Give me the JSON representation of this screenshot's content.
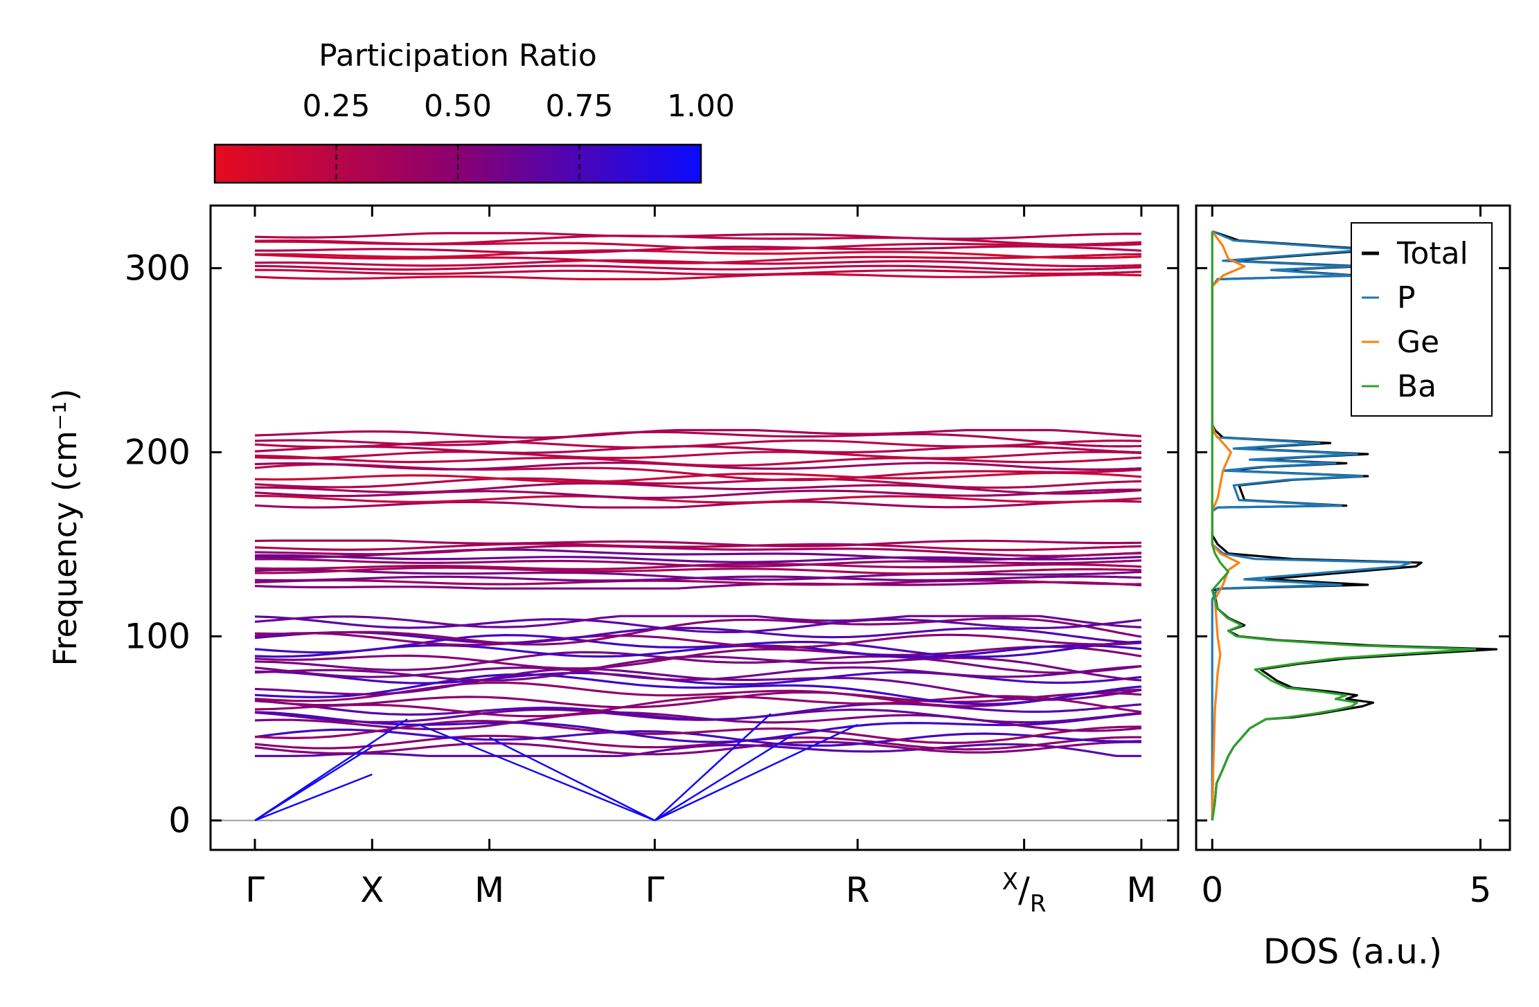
{
  "chart_data": [
    {
      "type": "line",
      "name": "phonon-band-structure",
      "ylabel": "Frequency (cm⁻¹)",
      "ylim": [
        -16,
        334
      ],
      "yticks": [
        0,
        100,
        200,
        300
      ],
      "ytick_labels": [
        "0",
        "100",
        "200",
        "300"
      ],
      "kpath": [
        {
          "label": "Γ",
          "x": 0.0
        },
        {
          "label": "X",
          "x": 1.0
        },
        {
          "label": "M",
          "x": 2.0
        },
        {
          "label": "Γ",
          "x": 3.41
        },
        {
          "label": "R",
          "x": 5.14
        },
        {
          "label": "X/R",
          "label_main": "X",
          "label_sub": "R",
          "x": 6.56
        },
        {
          "label": "M",
          "x": 7.56
        }
      ],
      "segment_breaks": [
        6.56
      ],
      "zero_line": 0,
      "color_by": "participation_ratio",
      "band_groups": [
        {
          "frequency_range": [
            294,
            319
          ],
          "band_count": 10,
          "participation_ratio": [
            0.1,
            0.3
          ]
        },
        {
          "frequency_range": [
            170,
            212
          ],
          "band_count": 14,
          "participation_ratio": [
            0.08,
            0.45
          ]
        },
        {
          "frequency_range": [
            126,
            152
          ],
          "band_count": 12,
          "participation_ratio": [
            0.3,
            0.65
          ]
        },
        {
          "frequency_range": [
            35,
            111
          ],
          "band_count": 26,
          "participation_ratio": [
            0.45,
            0.8
          ]
        },
        {
          "frequency_range": [
            0,
            60
          ],
          "band_count": 3,
          "description": "acoustic branches, zero at Γ",
          "participation_ratio": [
            0.9,
            1.0
          ]
        }
      ]
    },
    {
      "type": "colorbar",
      "name": "participation-ratio-colorbar",
      "title": "Participation Ratio",
      "range": [
        0.0,
        1.0
      ],
      "ticks": [
        0.25,
        0.5,
        0.75,
        1.0
      ],
      "tick_labels": [
        "0.25",
        "0.50",
        "0.75",
        "1.00"
      ],
      "colors": {
        "low": "#e60a1e",
        "high": "#0a0aff"
      }
    },
    {
      "type": "line",
      "name": "phonon-dos",
      "xlabel": "DOS (a.u.)",
      "xlim": [
        -0.3,
        5.55
      ],
      "xticks": [
        0,
        5
      ],
      "xtick_labels": [
        "0",
        "5"
      ],
      "ylim": [
        -16,
        334
      ],
      "legend": {
        "position": "top-right",
        "entries": [
          "Total",
          "P",
          "Ge",
          "Ba"
        ]
      },
      "series": [
        {
          "name": "Total",
          "color": "#000000",
          "points": [
            [
              0,
              0
            ],
            [
              0.05,
              10
            ],
            [
              0.08,
              20
            ],
            [
              0.2,
              28
            ],
            [
              0.3,
              35
            ],
            [
              0.4,
              40
            ],
            [
              0.55,
              45
            ],
            [
              0.7,
              50
            ],
            [
              1.0,
              55
            ],
            [
              1.5,
              56
            ],
            [
              2.0,
              58
            ],
            [
              2.4,
              60
            ],
            [
              2.8,
              62
            ],
            [
              3.0,
              64
            ],
            [
              2.5,
              66
            ],
            [
              2.7,
              68
            ],
            [
              2.2,
              70
            ],
            [
              1.5,
              72
            ],
            [
              1.2,
              76
            ],
            [
              1.0,
              80
            ],
            [
              0.9,
              82
            ],
            [
              1.6,
              85
            ],
            [
              2.5,
              88
            ],
            [
              3.6,
              90
            ],
            [
              5.3,
              93
            ],
            [
              3.0,
              95
            ],
            [
              1.2,
              98
            ],
            [
              0.5,
              100
            ],
            [
              0.3,
              103
            ],
            [
              0.6,
              106
            ],
            [
              0.3,
              110
            ],
            [
              0.1,
              115
            ],
            [
              0.05,
              122
            ],
            [
              0.0,
              125
            ],
            [
              0.2,
              126
            ],
            [
              2.9,
              128
            ],
            [
              1.0,
              131
            ],
            [
              3.8,
              138
            ],
            [
              3.9,
              140
            ],
            [
              1.5,
              142
            ],
            [
              0.3,
              145
            ],
            [
              0.1,
              150
            ],
            [
              0.0,
              155
            ],
            [
              0.0,
              168
            ],
            [
              0.1,
              170
            ],
            [
              2.5,
              171
            ],
            [
              0.6,
              174
            ],
            [
              0.5,
              182
            ],
            [
              1.5,
              185
            ],
            [
              2.9,
              187
            ],
            [
              0.3,
              190
            ],
            [
              1.0,
              192
            ],
            [
              2.5,
              194
            ],
            [
              0.8,
              196
            ],
            [
              2.9,
              199
            ],
            [
              0.5,
              202
            ],
            [
              2.2,
              205
            ],
            [
              0.2,
              208
            ],
            [
              0.05,
              212
            ],
            [
              0.0,
              215
            ],
            [
              0.0,
              290
            ],
            [
              0.1,
              294
            ],
            [
              2.7,
              296
            ],
            [
              1.2,
              299
            ],
            [
              2.8,
              301
            ],
            [
              0.3,
              304
            ],
            [
              3.1,
              310
            ],
            [
              0.5,
              315
            ],
            [
              0.1,
              319
            ],
            [
              0.0,
              320
            ]
          ]
        },
        {
          "name": "P",
          "color": "#1f77b4",
          "points": [
            [
              0,
              0
            ],
            [
              0,
              120
            ],
            [
              0.1,
              126
            ],
            [
              2.4,
              128
            ],
            [
              0.6,
              131
            ],
            [
              3.5,
              138
            ],
            [
              3.7,
              140
            ],
            [
              0.8,
              142
            ],
            [
              0.2,
              145
            ],
            [
              0.0,
              150
            ],
            [
              0.0,
              168
            ],
            [
              0.1,
              170
            ],
            [
              2.4,
              171
            ],
            [
              0.5,
              174
            ],
            [
              0.4,
              182
            ],
            [
              1.4,
              185
            ],
            [
              2.8,
              187
            ],
            [
              0.2,
              190
            ],
            [
              0.9,
              192
            ],
            [
              2.3,
              194
            ],
            [
              0.7,
              196
            ],
            [
              2.7,
              199
            ],
            [
              0.4,
              202
            ],
            [
              2.0,
              205
            ],
            [
              0.1,
              208
            ],
            [
              0.0,
              212
            ],
            [
              0.0,
              290
            ],
            [
              0.1,
              294
            ],
            [
              2.6,
              296
            ],
            [
              1.1,
              299
            ],
            [
              2.6,
              301
            ],
            [
              0.2,
              304
            ],
            [
              2.9,
              310
            ],
            [
              0.4,
              315
            ],
            [
              0.0,
              320
            ]
          ]
        },
        {
          "name": "Ge",
          "color": "#ff7f0e",
          "points": [
            [
              0,
              0
            ],
            [
              0.02,
              30
            ],
            [
              0.05,
              60
            ],
            [
              0.1,
              80
            ],
            [
              0.15,
              90
            ],
            [
              0.1,
              100
            ],
            [
              0.05,
              120
            ],
            [
              0.2,
              128
            ],
            [
              0.3,
              136
            ],
            [
              0.5,
              140
            ],
            [
              0.15,
              145
            ],
            [
              0.0,
              150
            ],
            [
              0.0,
              168
            ],
            [
              0.1,
              175
            ],
            [
              0.2,
              190
            ],
            [
              0.35,
              200
            ],
            [
              0.2,
              205
            ],
            [
              0.05,
              210
            ],
            [
              0.0,
              215
            ],
            [
              0.0,
              290
            ],
            [
              0.2,
              296
            ],
            [
              0.6,
              301
            ],
            [
              0.3,
              305
            ],
            [
              0.2,
              312
            ],
            [
              0.05,
              318
            ],
            [
              0.0,
              320
            ]
          ]
        },
        {
          "name": "Ba",
          "color": "#2ca02c",
          "points": [
            [
              0,
              0
            ],
            [
              0.05,
              10
            ],
            [
              0.08,
              20
            ],
            [
              0.2,
              28
            ],
            [
              0.3,
              35
            ],
            [
              0.4,
              40
            ],
            [
              0.55,
              45
            ],
            [
              0.7,
              50
            ],
            [
              1.0,
              55
            ],
            [
              1.4,
              56
            ],
            [
              1.9,
              58
            ],
            [
              2.3,
              60
            ],
            [
              2.6,
              62
            ],
            [
              2.7,
              64
            ],
            [
              2.3,
              66
            ],
            [
              2.5,
              68
            ],
            [
              2.0,
              70
            ],
            [
              1.4,
              72
            ],
            [
              1.1,
              76
            ],
            [
              0.9,
              80
            ],
            [
              0.8,
              82
            ],
            [
              1.5,
              85
            ],
            [
              2.3,
              88
            ],
            [
              3.3,
              90
            ],
            [
              4.9,
              93
            ],
            [
              2.7,
              95
            ],
            [
              1.1,
              98
            ],
            [
              0.45,
              100
            ],
            [
              0.3,
              103
            ],
            [
              0.55,
              106
            ],
            [
              0.28,
              110
            ],
            [
              0.1,
              115
            ],
            [
              0.03,
              122
            ],
            [
              0.0,
              125
            ],
            [
              0.15,
              130
            ],
            [
              0.3,
              135
            ],
            [
              0.15,
              140
            ],
            [
              0.05,
              145
            ],
            [
              0.0,
              150
            ],
            [
              0.0,
              320
            ]
          ]
        }
      ]
    }
  ]
}
